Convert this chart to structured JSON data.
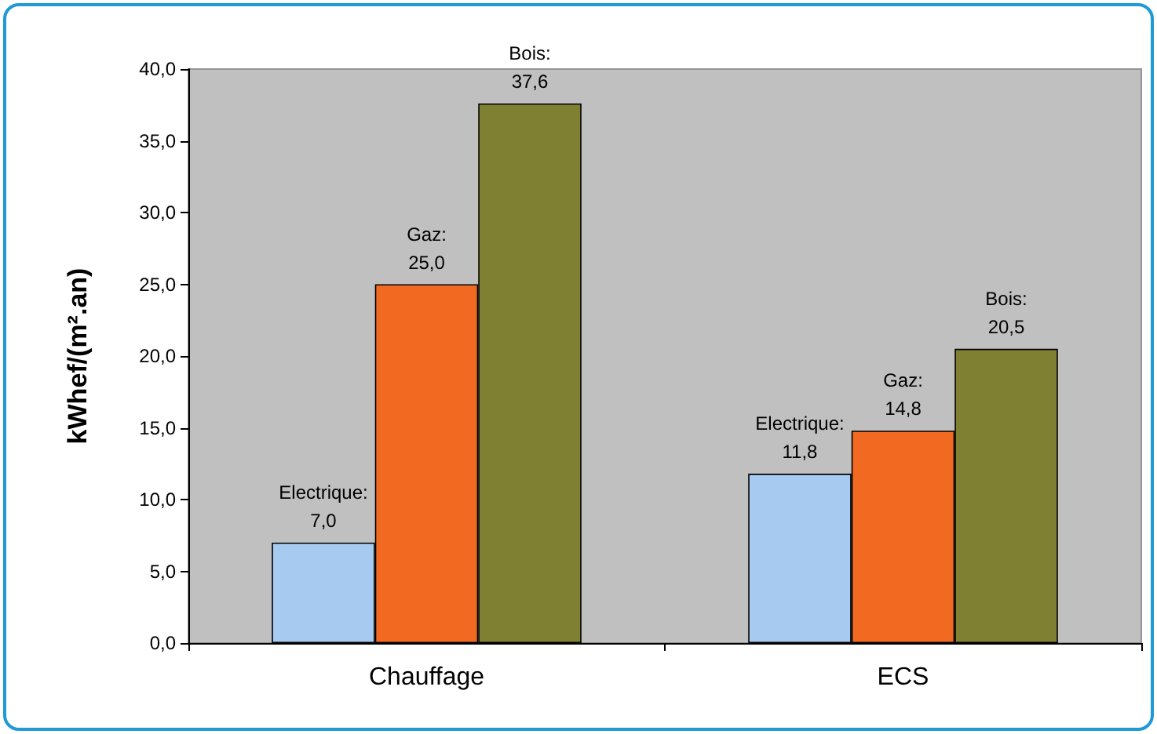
{
  "chart_data": {
    "type": "bar",
    "ylabel": "kWhef/(m².an)",
    "categories": [
      "Chauffage",
      "ECS"
    ],
    "series": [
      {
        "color": "#a6caf0",
        "values": [
          7.0,
          11.8
        ],
        "value_labels": [
          "Electrique:\n7,0",
          "Electrique:\n11,8"
        ]
      },
      {
        "color": "#f26a22",
        "values": [
          25.0,
          14.8
        ],
        "value_labels": [
          "Gaz:\n25,0",
          "Gaz:\n14,8"
        ]
      },
      {
        "color": "#808033",
        "values": [
          37.6,
          20.5
        ],
        "value_labels": [
          "Bois:\n37,6",
          "Bois:\n20,5"
        ]
      }
    ],
    "ylim": [
      0,
      40
    ],
    "yticks": [
      {
        "value": 0,
        "label": "0,0"
      },
      {
        "value": 5,
        "label": "5,0"
      },
      {
        "value": 10,
        "label": "10,0"
      },
      {
        "value": 15,
        "label": "15,0"
      },
      {
        "value": 20,
        "label": "20,0"
      },
      {
        "value": 25,
        "label": "25,0"
      },
      {
        "value": 30,
        "label": "30,0"
      },
      {
        "value": 35,
        "label": "35,0"
      },
      {
        "value": 40,
        "label": "40,0"
      }
    ],
    "grid": false
  }
}
